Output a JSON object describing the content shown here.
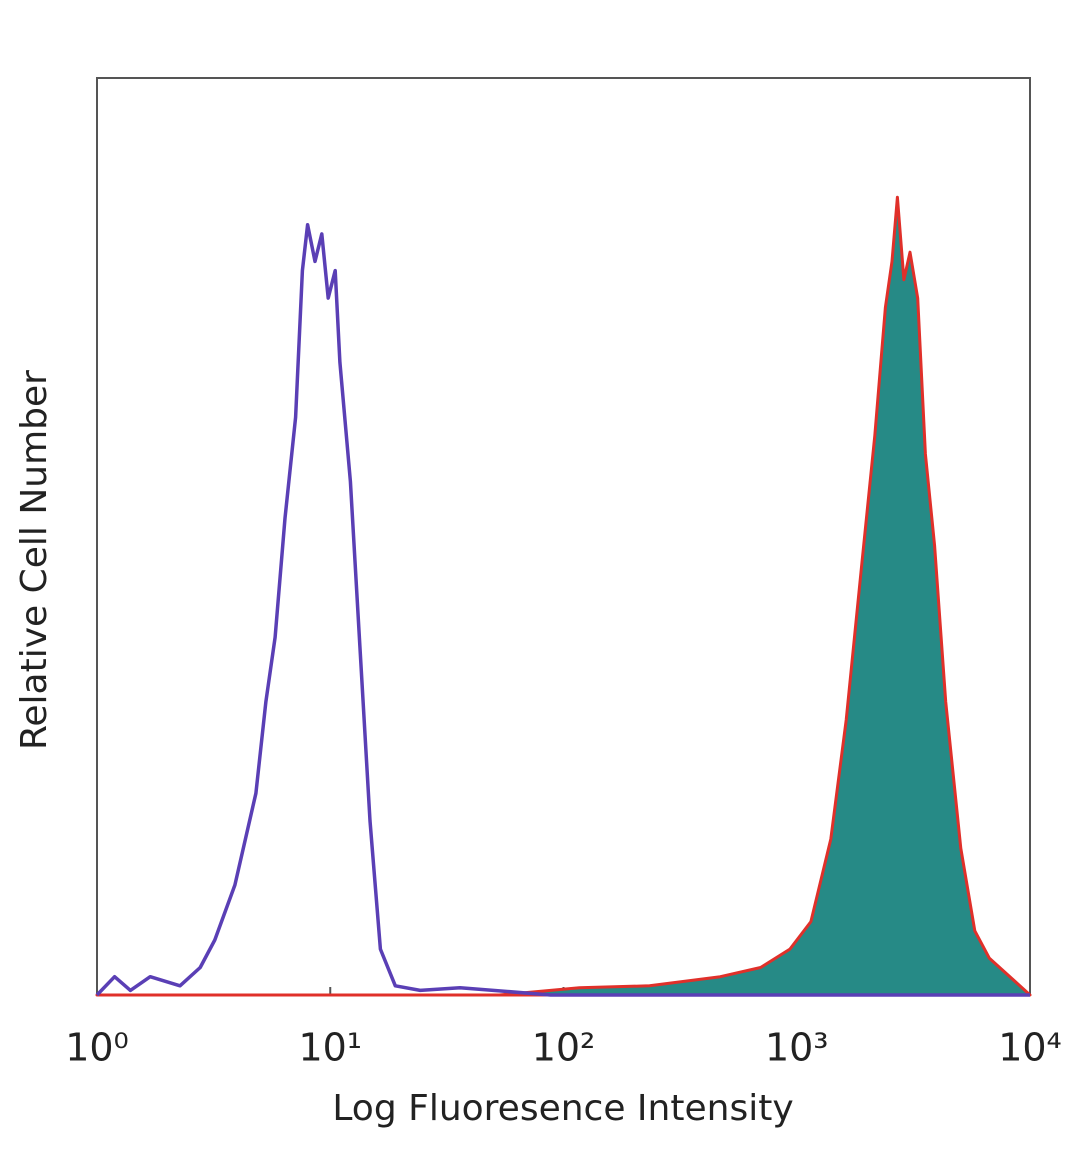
{
  "chart_data": {
    "type": "histogram-overlay",
    "xlabel": "Log Fluoresence Intensity",
    "ylabel": "Relative Cell Number",
    "xscale": "log",
    "xlim": [
      1,
      10000
    ],
    "xticks": [
      {
        "value": 1,
        "label": "10⁰"
      },
      {
        "value": 10,
        "label": "10¹"
      },
      {
        "value": 100,
        "label": "10²"
      },
      {
        "value": 1000,
        "label": "10³"
      },
      {
        "value": 10000,
        "label": "10⁴"
      }
    ],
    "ylim": [
      0,
      100
    ],
    "series": [
      {
        "color": "#e0302a",
        "fill": "#268a86",
        "x": [
          1,
          53,
          117,
          234,
          470,
          700,
          935,
          1150,
          1400,
          1630,
          1900,
          2160,
          2400,
          2560,
          2700,
          2880,
          3060,
          3300,
          3560,
          3900,
          4350,
          5050,
          5800,
          6700,
          8200,
          10000
        ],
        "values": [
          0,
          0,
          0.8,
          1,
          2,
          3,
          5,
          8,
          17,
          30,
          47,
          61,
          75,
          80,
          87,
          78,
          81,
          76,
          59,
          49,
          32,
          16,
          7,
          4,
          2,
          0
        ]
      },
      {
        "color": "#5a3fb5",
        "x": [
          1,
          1.19,
          1.39,
          1.69,
          2.27,
          2.77,
          3.2,
          3.9,
          4.8,
          5.3,
          5.8,
          6.4,
          7.1,
          7.6,
          8.0,
          8.6,
          9.2,
          9.8,
          10.5,
          11.0,
          12.2,
          13.4,
          14.8,
          16.4,
          19.0,
          24.3,
          36,
          88,
          385,
          10000
        ],
        "values": [
          0,
          2,
          0.5,
          2,
          1,
          3,
          6,
          12,
          22,
          32,
          39,
          52,
          63,
          79,
          84,
          80,
          83,
          76,
          79,
          69,
          56,
          38,
          19,
          5,
          1,
          0.5,
          0.8,
          0,
          0,
          0
        ]
      }
    ]
  }
}
